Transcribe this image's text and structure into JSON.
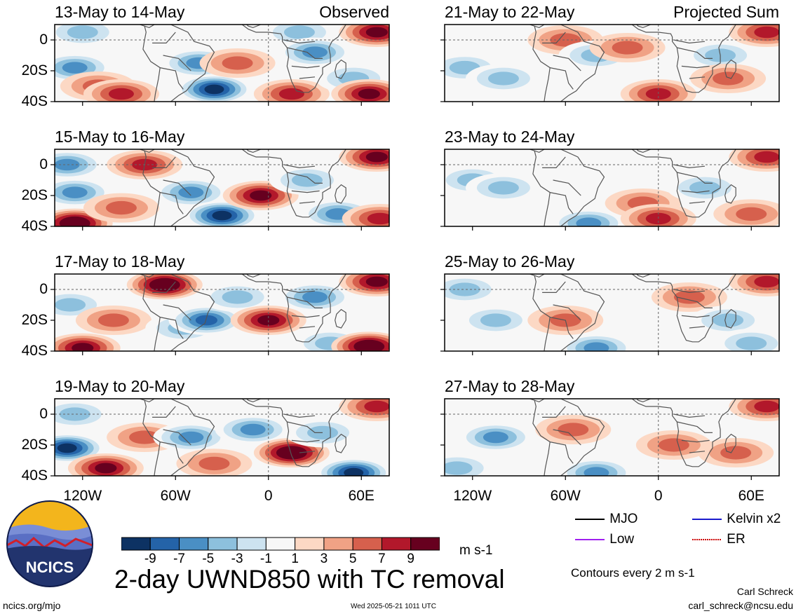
{
  "chart_data": {
    "type": "heatmap",
    "title": "2-day UWND850 with TC removal",
    "units": "m s-1",
    "contour_note": "Contours every 2 m s-1",
    "x_ticks": [
      "120W",
      "60W",
      "0",
      "60E"
    ],
    "x_tick_values": [
      -120,
      -60,
      0,
      60
    ],
    "y_ticks": [
      "0",
      "20S",
      "40S"
    ],
    "y_tick_values": [
      0,
      -20,
      -40
    ],
    "xlim": [
      -138,
      78
    ],
    "ylim": [
      -40,
      10
    ],
    "colorbar": {
      "ticks": [
        "-9",
        "-7",
        "-5",
        "-3",
        "-1",
        "1",
        "3",
        "5",
        "7",
        "9"
      ],
      "colors": [
        "#0d3263",
        "#2463a8",
        "#4a8fc4",
        "#8dc0dd",
        "#cde3f0",
        "#f7f7f7",
        "#fcd8c4",
        "#f0a285",
        "#d6604d",
        "#b2182b",
        "#67001f"
      ]
    },
    "legend": [
      {
        "label": "MJO",
        "color": "#000000",
        "style": "solid"
      },
      {
        "label": "Kelvin x2",
        "color": "#1a1acc",
        "style": "solid"
      },
      {
        "label": "Low",
        "color": "#a020f0",
        "style": "solid"
      },
      {
        "label": "ER",
        "color": "#cc0000",
        "style": "dotted"
      }
    ],
    "panels": [
      {
        "label": "13-May to 14-May",
        "tag": "Observed",
        "column": "left",
        "row": 0,
        "anomalies": [
          {
            "lon": -125,
            "lat": -18,
            "value": -5
          },
          {
            "lon": -120,
            "lat": 5,
            "value": -3
          },
          {
            "lon": -110,
            "lat": -30,
            "value": 3
          },
          {
            "lon": -95,
            "lat": -35,
            "value": 5
          },
          {
            "lon": -45,
            "lat": -15,
            "value": -5
          },
          {
            "lon": -35,
            "lat": -32,
            "value": -9
          },
          {
            "lon": -20,
            "lat": -15,
            "value": 3
          },
          {
            "lon": 15,
            "lat": -35,
            "value": 5
          },
          {
            "lon": 20,
            "lat": 5,
            "value": -3
          },
          {
            "lon": 30,
            "lat": -8,
            "value": -5
          },
          {
            "lon": 55,
            "lat": -25,
            "value": -3
          },
          {
            "lon": 65,
            "lat": -35,
            "value": 7
          },
          {
            "lon": 70,
            "lat": 5,
            "value": 7
          }
        ]
      },
      {
        "label": "15-May to 16-May",
        "tag": "",
        "column": "left",
        "row": 1,
        "anomalies": [
          {
            "lon": -130,
            "lat": 0,
            "value": -5
          },
          {
            "lon": -125,
            "lat": -18,
            "value": -5
          },
          {
            "lon": -125,
            "lat": -38,
            "value": 9
          },
          {
            "lon": -95,
            "lat": -28,
            "value": 3
          },
          {
            "lon": -80,
            "lat": 0,
            "value": 5
          },
          {
            "lon": -50,
            "lat": -18,
            "value": -5
          },
          {
            "lon": -30,
            "lat": -33,
            "value": -9
          },
          {
            "lon": -5,
            "lat": -20,
            "value": 7
          },
          {
            "lon": 25,
            "lat": -10,
            "value": -3
          },
          {
            "lon": 45,
            "lat": -32,
            "value": -5
          },
          {
            "lon": 70,
            "lat": 5,
            "value": 7
          },
          {
            "lon": 72,
            "lat": -35,
            "value": 5
          }
        ]
      },
      {
        "label": "17-May to 18-May",
        "tag": "",
        "column": "left",
        "row": 2,
        "anomalies": [
          {
            "lon": -128,
            "lat": -10,
            "value": -3
          },
          {
            "lon": -120,
            "lat": -38,
            "value": 7
          },
          {
            "lon": -100,
            "lat": -20,
            "value": 3
          },
          {
            "lon": -67,
            "lat": 3,
            "value": 9
          },
          {
            "lon": -55,
            "lat": -25,
            "value": -3
          },
          {
            "lon": -40,
            "lat": -20,
            "value": -7
          },
          {
            "lon": -20,
            "lat": -5,
            "value": -3
          },
          {
            "lon": 0,
            "lat": -20,
            "value": 7
          },
          {
            "lon": 30,
            "lat": -5,
            "value": -5
          },
          {
            "lon": 40,
            "lat": -35,
            "value": -3
          },
          {
            "lon": 70,
            "lat": 5,
            "value": 7
          },
          {
            "lon": 65,
            "lat": -37,
            "value": 9
          }
        ]
      },
      {
        "label": "19-May to 20-May",
        "tag": "",
        "column": "left",
        "row": 3,
        "anomalies": [
          {
            "lon": -130,
            "lat": -22,
            "value": -9
          },
          {
            "lon": -125,
            "lat": 0,
            "value": -3
          },
          {
            "lon": -105,
            "lat": -35,
            "value": 7
          },
          {
            "lon": -80,
            "lat": -15,
            "value": 3
          },
          {
            "lon": -50,
            "lat": -15,
            "value": -5
          },
          {
            "lon": -35,
            "lat": -32,
            "value": 3
          },
          {
            "lon": -10,
            "lat": -10,
            "value": -5
          },
          {
            "lon": 15,
            "lat": -25,
            "value": 9
          },
          {
            "lon": 35,
            "lat": -12,
            "value": -3
          },
          {
            "lon": 55,
            "lat": -38,
            "value": -9
          },
          {
            "lon": 70,
            "lat": 5,
            "value": 5
          }
        ]
      },
      {
        "label": "21-May to 22-May",
        "tag": "Projected Sum",
        "column": "right",
        "row": 0,
        "anomalies": [
          {
            "lon": -125,
            "lat": -18,
            "value": -3
          },
          {
            "lon": -100,
            "lat": -25,
            "value": -3
          },
          {
            "lon": -60,
            "lat": 0,
            "value": 3
          },
          {
            "lon": -40,
            "lat": -10,
            "value": -3
          },
          {
            "lon": -20,
            "lat": -5,
            "value": 3
          },
          {
            "lon": 0,
            "lat": -35,
            "value": 5
          },
          {
            "lon": 40,
            "lat": -10,
            "value": -3
          },
          {
            "lon": 45,
            "lat": -25,
            "value": 3
          },
          {
            "lon": 70,
            "lat": 5,
            "value": 5
          }
        ]
      },
      {
        "label": "23-May to 24-May",
        "tag": "",
        "column": "right",
        "row": 1,
        "anomalies": [
          {
            "lon": -120,
            "lat": -10,
            "value": -3
          },
          {
            "lon": -100,
            "lat": -15,
            "value": -3
          },
          {
            "lon": -45,
            "lat": -38,
            "value": -5
          },
          {
            "lon": -10,
            "lat": -25,
            "value": 3
          },
          {
            "lon": 0,
            "lat": -35,
            "value": 5
          },
          {
            "lon": 30,
            "lat": -15,
            "value": -3
          },
          {
            "lon": 60,
            "lat": -32,
            "value": 3
          },
          {
            "lon": 70,
            "lat": 5,
            "value": 5
          }
        ]
      },
      {
        "label": "25-May to 26-May",
        "tag": "",
        "column": "right",
        "row": 2,
        "anomalies": [
          {
            "lon": -125,
            "lat": 0,
            "value": -3
          },
          {
            "lon": -105,
            "lat": -20,
            "value": -3
          },
          {
            "lon": -40,
            "lat": -38,
            "value": -5
          },
          {
            "lon": -60,
            "lat": -20,
            "value": 3
          },
          {
            "lon": 20,
            "lat": -5,
            "value": 3
          },
          {
            "lon": 45,
            "lat": -20,
            "value": -3
          },
          {
            "lon": 60,
            "lat": -35,
            "value": -3
          },
          {
            "lon": 70,
            "lat": 5,
            "value": 5
          }
        ]
      },
      {
        "label": "27-May to 28-May",
        "tag": "",
        "column": "right",
        "row": 3,
        "anomalies": [
          {
            "lon": -105,
            "lat": -15,
            "value": -5
          },
          {
            "lon": -130,
            "lat": -35,
            "value": -3
          },
          {
            "lon": -55,
            "lat": -10,
            "value": 3
          },
          {
            "lon": -40,
            "lat": -38,
            "value": -5
          },
          {
            "lon": 10,
            "lat": -20,
            "value": 3
          },
          {
            "lon": 50,
            "lat": -25,
            "value": 3
          },
          {
            "lon": 70,
            "lat": 5,
            "value": 5
          }
        ]
      }
    ]
  },
  "logo": {
    "text": "NCICS"
  },
  "footer": {
    "site": "ncics.org/mjo",
    "timestamp": "Wed 2025-05-21 1011 UTC",
    "author": "Carl Schreck",
    "email": "carl_schreck@ncsu.edu"
  }
}
